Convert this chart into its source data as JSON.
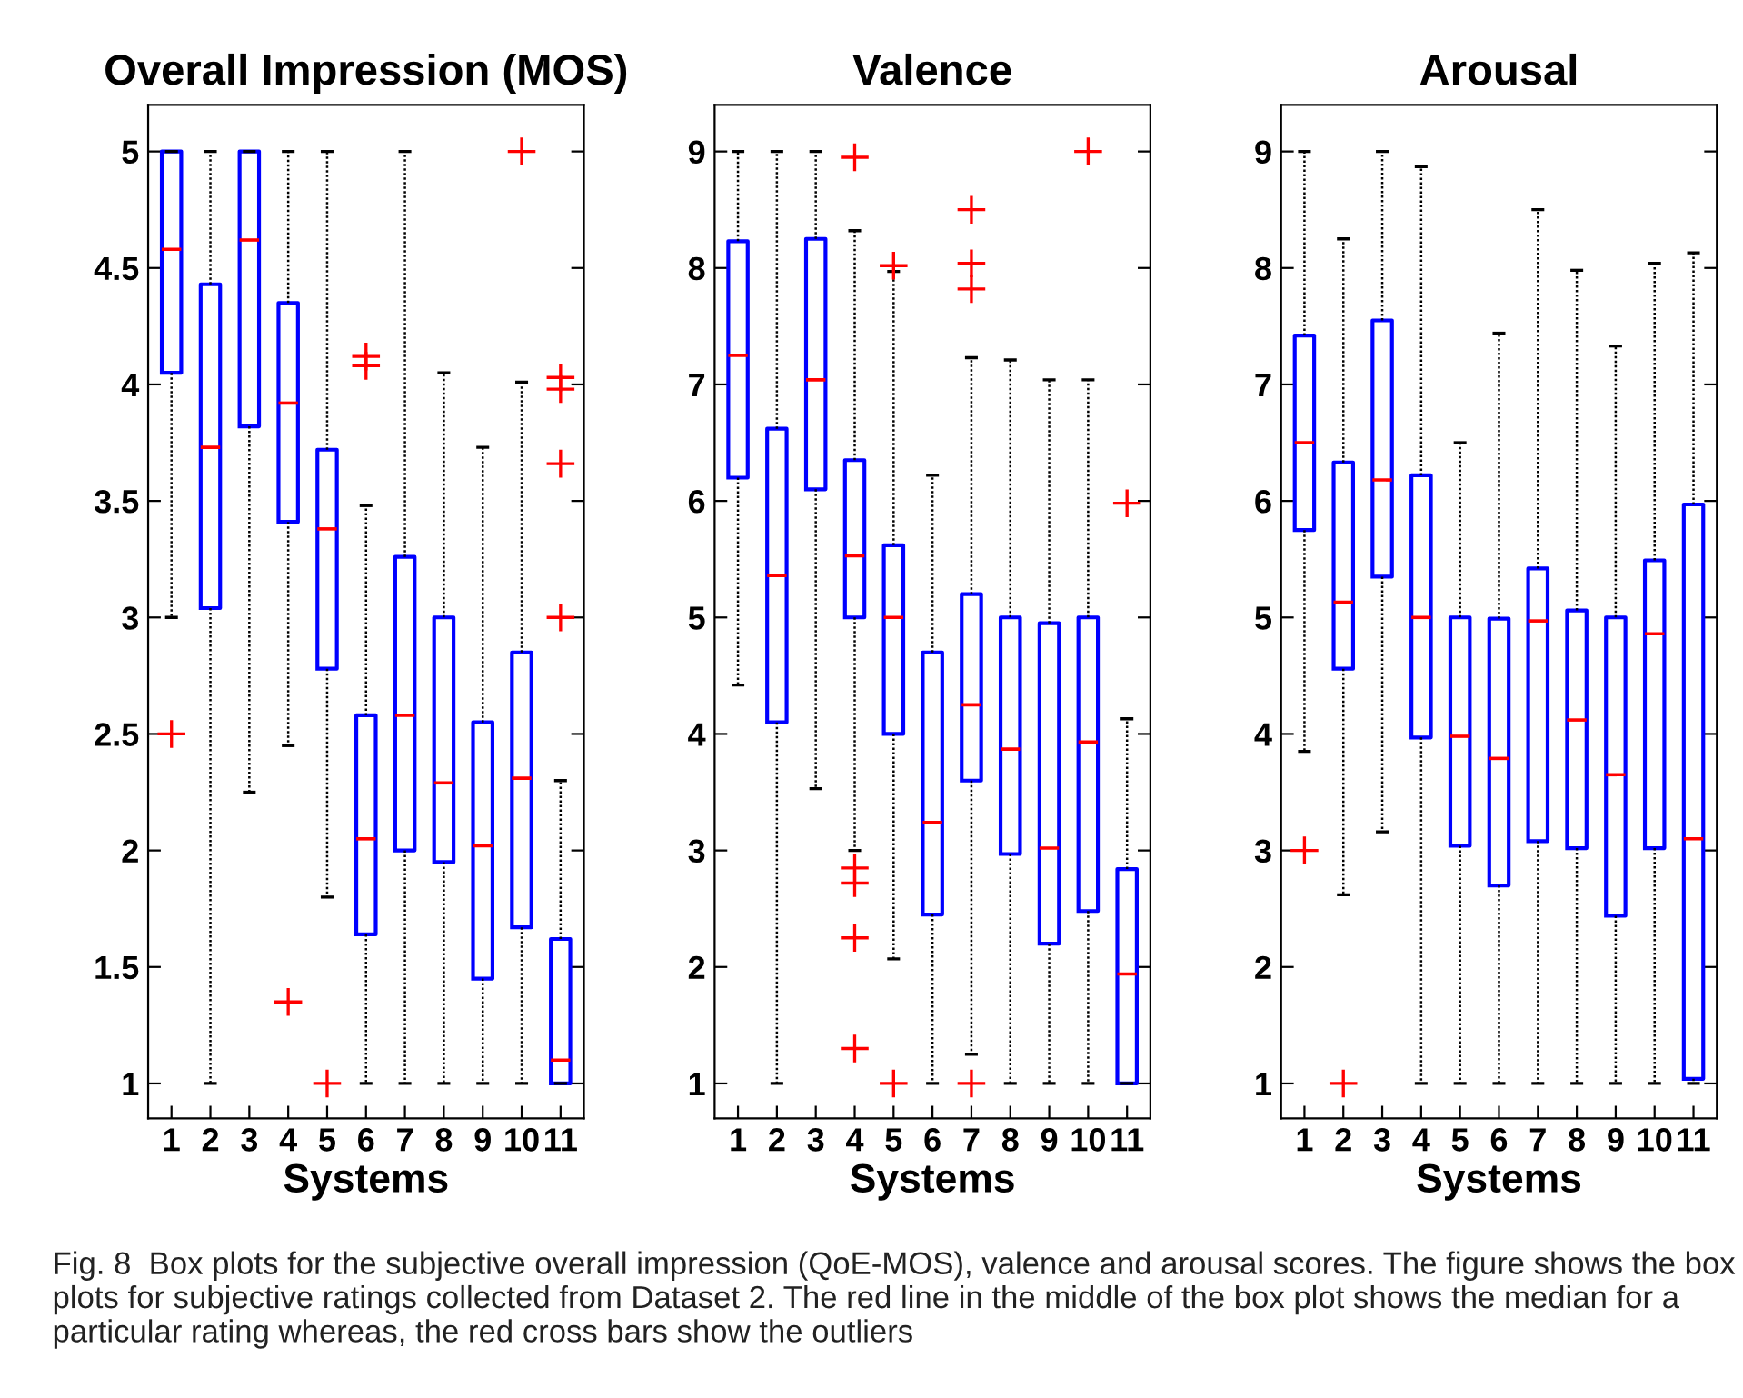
{
  "chart_data": [
    {
      "type": "box",
      "title": "Overall Impression (MOS)",
      "xlabel": "Systems",
      "categories": [
        "1",
        "2",
        "3",
        "4",
        "5",
        "6",
        "7",
        "8",
        "9",
        "10",
        "11"
      ],
      "ylim": [
        0.85,
        5.2
      ],
      "yticks": [
        1,
        1.5,
        2,
        2.5,
        3,
        3.5,
        4,
        4.5,
        5
      ],
      "marker": "cross",
      "boxes": [
        {
          "low": 3.0,
          "q1": 4.05,
          "median": 4.58,
          "q3": 5,
          "high": 5,
          "outliers": [
            2.5
          ]
        },
        {
          "low": 1,
          "q1": 3.04,
          "median": 3.73,
          "q3": 4.43,
          "high": 5
        },
        {
          "low": 2.25,
          "q1": 3.82,
          "median": 4.62,
          "q3": 5,
          "high": 5
        },
        {
          "low": 2.45,
          "q1": 3.41,
          "median": 3.92,
          "q3": 4.35,
          "high": 5,
          "outliers": [
            1.35
          ]
        },
        {
          "low": 1.8,
          "q1": 2.78,
          "median": 3.38,
          "q3": 3.72,
          "high": 5,
          "outliers": [
            1
          ]
        },
        {
          "low": 1,
          "q1": 1.64,
          "median": 2.05,
          "q3": 2.58,
          "high": 3.48,
          "outliers": [
            4.08,
            4.12
          ]
        },
        {
          "low": 1,
          "q1": 2,
          "median": 2.58,
          "q3": 3.26,
          "high": 5
        },
        {
          "low": 1,
          "q1": 1.95,
          "median": 2.29,
          "q3": 3,
          "high": 4.05
        },
        {
          "low": 1,
          "q1": 1.45,
          "median": 2.02,
          "q3": 2.55,
          "high": 3.73
        },
        {
          "low": 1,
          "q1": 1.67,
          "median": 2.31,
          "q3": 2.85,
          "high": 4.01,
          "outliers": [
            5
          ]
        },
        {
          "low": 1,
          "q1": 1,
          "median": 1.1,
          "q3": 1.62,
          "high": 2.3,
          "outliers": [
            3,
            3.66,
            3.98,
            4.03
          ]
        }
      ],
      "annotations": [
        "Fig. 8  Box plots for the subjective overall impression (QoE-MOS), valence and arousal scores. The figure shows the box plots for subjective ratings collected from Dataset 2. The red line in the middle of the box plot shows the median for a particular rating whereas, the red cross bars show the outliers"
      ]
    },
    {
      "type": "box",
      "title": "Valence",
      "xlabel": "Systems",
      "categories": [
        "1",
        "2",
        "3",
        "4",
        "5",
        "6",
        "7",
        "8",
        "9",
        "10",
        "11"
      ],
      "ylim": [
        0.7,
        9.4
      ],
      "yticks": [
        1,
        2,
        3,
        4,
        5,
        6,
        7,
        8,
        9
      ],
      "marker": "cross",
      "boxes": [
        {
          "low": 4.42,
          "q1": 6.2,
          "median": 7.25,
          "q3": 8.23,
          "high": 9
        },
        {
          "low": 1,
          "q1": 4.1,
          "median": 5.36,
          "q3": 6.62,
          "high": 9
        },
        {
          "low": 3.53,
          "q1": 6.1,
          "median": 7.04,
          "q3": 8.25,
          "high": 9
        },
        {
          "low": 3.0,
          "q1": 5.0,
          "median": 5.53,
          "q3": 6.35,
          "high": 8.32,
          "outliers": [
            8.95,
            2.85,
            2.72,
            2.25,
            1.3
          ]
        },
        {
          "low": 2.07,
          "q1": 4.0,
          "median": 5.0,
          "q3": 5.62,
          "high": 7.97,
          "outliers": [
            8.02,
            1
          ]
        },
        {
          "low": 1,
          "q1": 2.45,
          "median": 3.24,
          "q3": 4.7,
          "high": 6.22
        },
        {
          "low": 1.25,
          "q1": 3.6,
          "median": 4.25,
          "q3": 5.2,
          "high": 7.23,
          "outliers": [
            8.5,
            8.04,
            7.82,
            1
          ]
        },
        {
          "low": 1,
          "q1": 2.97,
          "median": 3.87,
          "q3": 5,
          "high": 7.21
        },
        {
          "low": 1,
          "q1": 2.2,
          "median": 3.02,
          "q3": 4.95,
          "high": 7.04
        },
        {
          "low": 1,
          "q1": 2.48,
          "median": 3.93,
          "q3": 5,
          "high": 7.04,
          "outliers": [
            9
          ]
        },
        {
          "low": 1,
          "q1": 1,
          "median": 1.94,
          "q3": 2.84,
          "high": 4.13,
          "outliers": [
            5.98
          ]
        }
      ]
    },
    {
      "type": "box",
      "title": "Arousal",
      "xlabel": "Systems",
      "categories": [
        "1",
        "2",
        "3",
        "4",
        "5",
        "6",
        "7",
        "8",
        "9",
        "10",
        "11"
      ],
      "ylim": [
        0.7,
        9.4
      ],
      "yticks": [
        1,
        2,
        3,
        4,
        5,
        6,
        7,
        8,
        9
      ],
      "marker": "cross",
      "boxes": [
        {
          "low": 3.85,
          "q1": 5.75,
          "median": 6.5,
          "q3": 7.42,
          "high": 9,
          "outliers": [
            3
          ]
        },
        {
          "low": 2.62,
          "q1": 4.56,
          "median": 5.13,
          "q3": 6.33,
          "high": 8.25,
          "outliers": [
            1
          ]
        },
        {
          "low": 3.16,
          "q1": 5.35,
          "median": 6.18,
          "q3": 7.55,
          "high": 9
        },
        {
          "low": 1,
          "q1": 3.97,
          "median": 5,
          "q3": 6.22,
          "high": 8.87
        },
        {
          "low": 1,
          "q1": 3.04,
          "median": 3.98,
          "q3": 5,
          "high": 6.5
        },
        {
          "low": 1,
          "q1": 2.7,
          "median": 3.79,
          "q3": 4.99,
          "high": 7.44
        },
        {
          "low": 1,
          "q1": 3.08,
          "median": 4.97,
          "q3": 5.42,
          "high": 8.5
        },
        {
          "low": 1,
          "q1": 3.02,
          "median": 4.12,
          "q3": 5.06,
          "high": 7.98
        },
        {
          "low": 1,
          "q1": 2.44,
          "median": 3.65,
          "q3": 5,
          "high": 7.33
        },
        {
          "low": 1,
          "q1": 3.02,
          "median": 4.86,
          "q3": 5.49,
          "high": 8.04
        },
        {
          "low": 1,
          "q1": 1.04,
          "median": 3.1,
          "q3": 5.97,
          "high": 8.13
        }
      ]
    }
  ]
}
